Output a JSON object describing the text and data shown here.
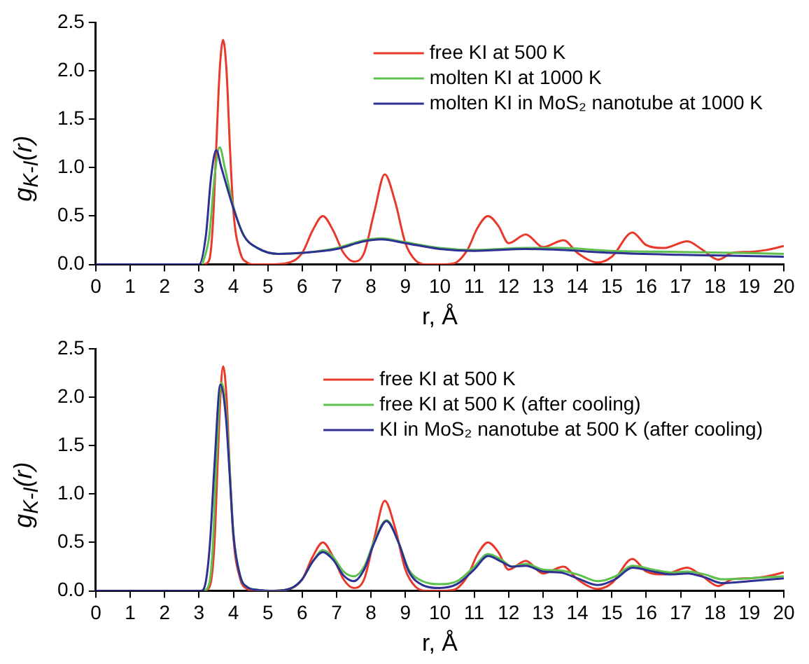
{
  "chart_data": [
    {
      "type": "line",
      "xlabel": "r, Å",
      "ylabel": "g$_{K-I}$(r)",
      "xlim": [
        0,
        20
      ],
      "xticks": [
        0,
        1,
        2,
        3,
        4,
        5,
        6,
        7,
        8,
        9,
        10,
        11,
        12,
        13,
        14,
        15,
        16,
        17,
        18,
        19,
        20
      ],
      "ylim": [
        0,
        2.5
      ],
      "yticks": [
        {
          "value": 0,
          "label": "0.0"
        },
        {
          "value": 0.5,
          "label": "0.5"
        },
        {
          "value": 1,
          "label": "1.0"
        },
        {
          "value": 1.5,
          "label": "1.5"
        },
        {
          "value": 2,
          "label": "2.0"
        },
        {
          "value": 2.5,
          "label": "2.5"
        }
      ],
      "grid": false,
      "legend": "top right",
      "marker": "none",
      "line_style": "solid",
      "series": [
        {
          "name": "free KI at 500 K",
          "color": "#e8392b",
          "x": [
            3.15,
            3.3,
            3.4,
            3.5,
            3.6,
            3.7,
            3.8,
            3.9,
            4.0,
            4.2,
            4.4,
            4.6,
            5.0,
            5.5,
            6.0,
            6.3,
            6.6,
            6.9,
            7.2,
            7.5,
            7.8,
            8.1,
            8.4,
            8.7,
            9.0,
            9.3,
            9.6,
            10.0,
            10.4,
            10.8,
            11.1,
            11.4,
            11.7,
            12.0,
            12.5,
            13.0,
            13.6,
            14.0,
            14.6,
            15.0,
            15.6,
            16.0,
            16.5,
            17.2,
            17.6,
            18.1,
            18.5,
            19,
            19.5,
            20
          ],
          "values": [
            0,
            0.05,
            0.4,
            1.2,
            2.0,
            2.32,
            2.0,
            1.2,
            0.55,
            0.12,
            0.02,
            0,
            0,
            0.01,
            0.12,
            0.35,
            0.5,
            0.35,
            0.12,
            0.03,
            0.12,
            0.55,
            0.93,
            0.65,
            0.22,
            0.04,
            0,
            0,
            0.01,
            0.15,
            0.38,
            0.5,
            0.4,
            0.22,
            0.31,
            0.18,
            0.25,
            0.12,
            0.02,
            0.08,
            0.33,
            0.2,
            0.17,
            0.24,
            0.16,
            0.05,
            0.12,
            0.13,
            0.15,
            0.19
          ]
        },
        {
          "name": "molten KI at 1000 K",
          "color": "#5ec04e",
          "x": [
            3.1,
            3.3,
            3.45,
            3.6,
            3.75,
            4.0,
            4.3,
            4.7,
            5.3,
            6.0,
            7.0,
            7.8,
            8.3,
            9.0,
            10,
            11,
            12.5,
            13.5,
            15,
            17,
            20
          ],
          "values": [
            0,
            0.3,
            0.9,
            1.21,
            1.0,
            0.6,
            0.3,
            0.17,
            0.11,
            0.12,
            0.17,
            0.25,
            0.27,
            0.23,
            0.17,
            0.15,
            0.17,
            0.17,
            0.14,
            0.13,
            0.11
          ]
        },
        {
          "name": "molten KI in MoS₂ nanotube at 1000 K",
          "color": "#2e3192",
          "x": [
            0,
            3.0,
            3.2,
            3.35,
            3.5,
            3.65,
            4.0,
            4.3,
            4.7,
            5.3,
            6.0,
            7.0,
            7.8,
            8.3,
            9.0,
            10,
            11,
            12.5,
            13.5,
            15,
            17,
            20
          ],
          "values": [
            0,
            0,
            0.3,
            0.9,
            1.18,
            1.0,
            0.58,
            0.3,
            0.17,
            0.11,
            0.12,
            0.16,
            0.24,
            0.26,
            0.22,
            0.16,
            0.14,
            0.16,
            0.15,
            0.12,
            0.1,
            0.08
          ]
        }
      ]
    },
    {
      "type": "line",
      "xlabel": "r, Å",
      "ylabel": "g$_{K-I}$(r)",
      "xlim": [
        0,
        20
      ],
      "xticks": [
        0,
        1,
        2,
        3,
        4,
        5,
        6,
        7,
        8,
        9,
        10,
        11,
        12,
        13,
        14,
        15,
        16,
        17,
        18,
        19,
        20
      ],
      "ylim": [
        0,
        2.5
      ],
      "yticks": [
        {
          "value": 0,
          "label": "0.0"
        },
        {
          "value": 0.5,
          "label": "0.5"
        },
        {
          "value": 1,
          "label": "1.0"
        },
        {
          "value": 1.5,
          "label": "1.5"
        },
        {
          "value": 2,
          "label": "2.0"
        },
        {
          "value": 2.5,
          "label": "2.5"
        }
      ],
      "grid": false,
      "legend": "top right",
      "marker": "none",
      "line_style": "solid",
      "series": [
        {
          "name": "free KI at 500 K",
          "color": "#e8392b",
          "x": [
            3.2,
            3.35,
            3.45,
            3.55,
            3.62,
            3.7,
            3.8,
            3.9,
            4.0,
            4.2,
            4.4,
            4.6,
            5.0,
            5.5,
            6.0,
            6.3,
            6.6,
            6.9,
            7.2,
            7.5,
            7.8,
            8.1,
            8.4,
            8.7,
            9.0,
            9.3,
            9.6,
            10.0,
            10.4,
            10.8,
            11.1,
            11.4,
            11.7,
            12.0,
            12.5,
            13.0,
            13.6,
            14.0,
            14.6,
            15.0,
            15.6,
            16.0,
            16.5,
            17.2,
            17.6,
            18.1,
            18.5,
            19,
            19.5,
            20
          ],
          "values": [
            0,
            0.1,
            0.5,
            1.4,
            2.0,
            2.32,
            2.0,
            1.2,
            0.55,
            0.12,
            0.02,
            0,
            0,
            0.01,
            0.12,
            0.35,
            0.5,
            0.35,
            0.12,
            0.03,
            0.12,
            0.55,
            0.93,
            0.65,
            0.22,
            0.04,
            0,
            0,
            0.01,
            0.15,
            0.38,
            0.5,
            0.4,
            0.22,
            0.31,
            0.18,
            0.25,
            0.12,
            0.02,
            0.08,
            0.33,
            0.2,
            0.17,
            0.24,
            0.16,
            0.05,
            0.12,
            0.13,
            0.15,
            0.19
          ]
        },
        {
          "name": "free KI at 500 K (after cooling)",
          "color": "#5ec04e",
          "x": [
            3.15,
            3.3,
            3.4,
            3.5,
            3.65,
            3.8,
            3.9,
            4.0,
            4.2,
            4.4,
            4.7,
            5.2,
            5.7,
            6.0,
            6.3,
            6.6,
            6.9,
            7.2,
            7.5,
            7.8,
            8.1,
            8.45,
            8.8,
            9.1,
            9.5,
            10.0,
            10.5,
            11.0,
            11.4,
            11.8,
            12.1,
            12.5,
            13.0,
            13.5,
            14.0,
            14.6,
            15.1,
            15.6,
            16.2,
            16.7,
            17.2,
            17.7,
            18.2,
            19,
            20
          ],
          "values": [
            0,
            0.08,
            0.45,
            1.3,
            2.15,
            1.8,
            1.2,
            0.6,
            0.15,
            0.04,
            0.01,
            0,
            0.03,
            0.12,
            0.3,
            0.42,
            0.35,
            0.2,
            0.15,
            0.25,
            0.52,
            0.73,
            0.5,
            0.22,
            0.1,
            0.07,
            0.1,
            0.25,
            0.38,
            0.32,
            0.25,
            0.28,
            0.22,
            0.21,
            0.17,
            0.1,
            0.15,
            0.26,
            0.22,
            0.19,
            0.2,
            0.17,
            0.12,
            0.13,
            0.15
          ]
        },
        {
          "name": "KI in MoS₂ nanotube at 500 K (after cooling)",
          "color": "#2e3192",
          "x": [
            0,
            3.05,
            3.2,
            3.32,
            3.45,
            3.62,
            3.78,
            3.9,
            4.0,
            4.2,
            4.4,
            4.7,
            5.2,
            5.7,
            6.0,
            6.3,
            6.6,
            6.9,
            7.2,
            7.5,
            7.8,
            8.1,
            8.45,
            8.8,
            9.1,
            9.5,
            10.0,
            10.5,
            11.0,
            11.4,
            11.8,
            12.1,
            12.5,
            13.0,
            13.5,
            14.0,
            14.6,
            15.1,
            15.6,
            16.2,
            16.7,
            17.2,
            17.7,
            18.2,
            19,
            20
          ],
          "values": [
            0,
            0,
            0.1,
            0.5,
            1.3,
            2.13,
            1.8,
            1.15,
            0.58,
            0.15,
            0.04,
            0.01,
            0,
            0.03,
            0.12,
            0.3,
            0.4,
            0.32,
            0.16,
            0.1,
            0.22,
            0.5,
            0.72,
            0.5,
            0.2,
            0.06,
            0.03,
            0.07,
            0.22,
            0.36,
            0.3,
            0.25,
            0.26,
            0.2,
            0.19,
            0.13,
            0.06,
            0.12,
            0.24,
            0.2,
            0.17,
            0.18,
            0.14,
            0.08,
            0.1,
            0.13
          ]
        }
      ]
    }
  ]
}
